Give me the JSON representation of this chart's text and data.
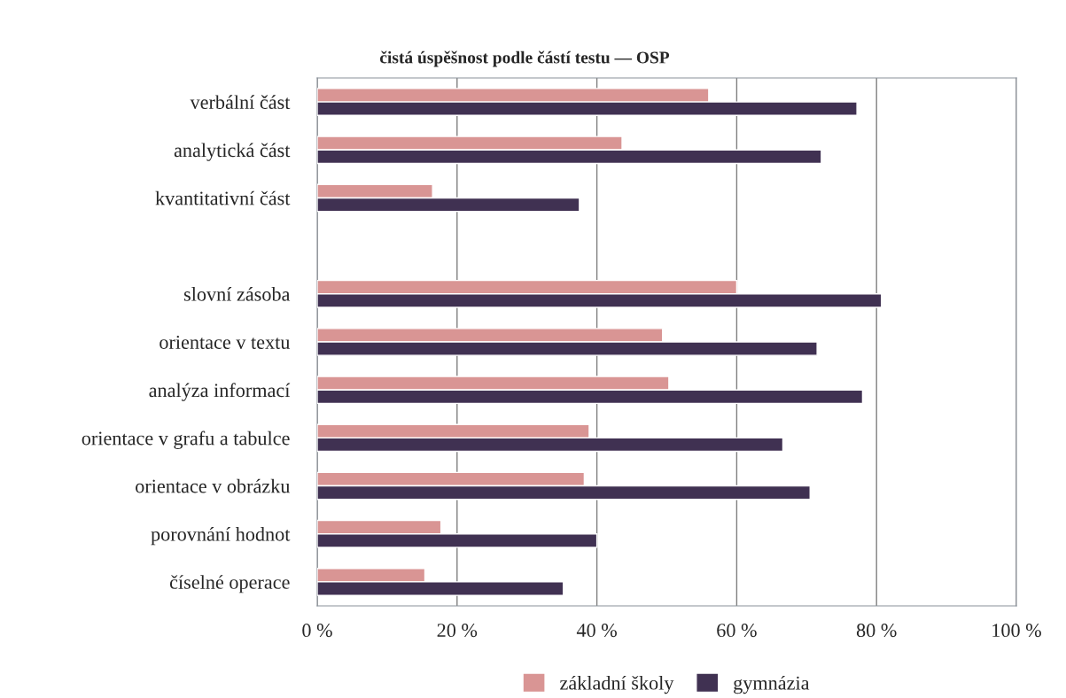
{
  "chart_data": {
    "type": "bar",
    "orientation": "horizontal",
    "title": "čistá úspěšnost podle částí testu — OSP",
    "categories": [
      "verbální část",
      "analytická část",
      "kvantitativní část",
      null,
      "slovní zásoba",
      "orientace v textu",
      "analýza informací",
      "orientace v grafu a tabulce",
      "orientace v obrázku",
      "porovnání hodnot",
      "číselné operace"
    ],
    "series": [
      {
        "name": "základní školy",
        "color": "#d99594",
        "values": [
          56,
          43.6,
          16.5,
          null,
          60,
          49.4,
          50.3,
          38.9,
          38.2,
          17.7,
          15.4
        ]
      },
      {
        "name": "gymnázia",
        "color": "#403152",
        "values": [
          77.2,
          72.1,
          37.5,
          null,
          80.7,
          71.5,
          78.0,
          66.6,
          70.5,
          40.0,
          35.2
        ]
      }
    ],
    "xlim": [
      0,
      100
    ],
    "xticks": [
      {
        "value": 0,
        "label": "0 %"
      },
      {
        "value": 20,
        "label": "20 %"
      },
      {
        "value": 40,
        "label": "40 %"
      },
      {
        "value": 60,
        "label": "60 %"
      },
      {
        "value": 80,
        "label": "80 %"
      },
      {
        "value": 100,
        "label": "100 %"
      }
    ],
    "grid": "x",
    "legend": "bottom"
  }
}
